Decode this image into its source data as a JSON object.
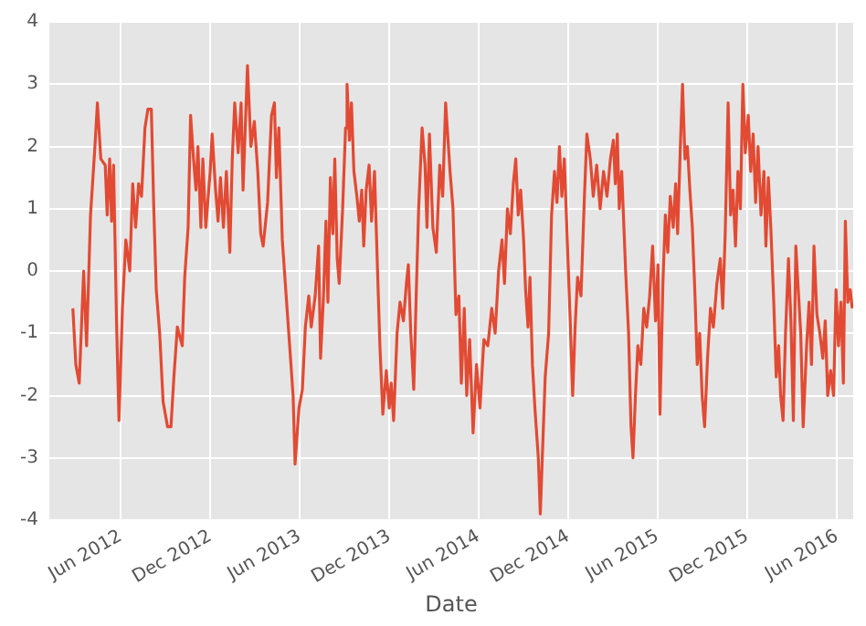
{
  "chart_data": {
    "type": "line",
    "xlabel": "Date",
    "xlim": [
      "2012-01-08",
      "2016-07-04"
    ],
    "xticks": [
      {
        "value": "2012-06-01",
        "label": "Jun 2012"
      },
      {
        "value": "2012-12-01",
        "label": "Dec 2012"
      },
      {
        "value": "2013-06-01",
        "label": "Jun 2013"
      },
      {
        "value": "2013-12-01",
        "label": "Dec 2013"
      },
      {
        "value": "2014-06-01",
        "label": "Jun 2014"
      },
      {
        "value": "2014-12-01",
        "label": "Dec 2014"
      },
      {
        "value": "2015-06-01",
        "label": "Jun 2015"
      },
      {
        "value": "2015-12-01",
        "label": "Dec 2015"
      },
      {
        "value": "2016-06-01",
        "label": "Jun 2016"
      }
    ],
    "ylim": [
      -4,
      4
    ],
    "yticks": [
      -4,
      -3,
      -2,
      -1,
      0,
      1,
      2,
      3,
      4
    ],
    "grid": true,
    "series": [
      {
        "color": "#e24a33",
        "x": [
          "2012-02-25",
          "2012-03-02",
          "2012-03-09",
          "2012-03-18",
          "2012-03-24",
          "2012-04-01",
          "2012-04-10",
          "2012-04-15",
          "2012-04-22",
          "2012-05-01",
          "2012-05-05",
          "2012-05-10",
          "2012-05-14",
          "2012-05-18",
          "2012-05-24",
          "2012-05-29",
          "2012-06-05",
          "2012-06-12",
          "2012-06-20",
          "2012-06-26",
          "2012-07-02",
          "2012-07-08",
          "2012-07-14",
          "2012-07-21",
          "2012-07-27",
          "2012-08-03",
          "2012-08-08",
          "2012-08-13",
          "2012-08-20",
          "2012-08-27",
          "2012-09-05",
          "2012-09-12",
          "2012-09-18",
          "2012-09-25",
          "2012-10-05",
          "2012-10-10",
          "2012-10-17",
          "2012-10-22",
          "2012-10-28",
          "2012-11-02",
          "2012-11-06",
          "2012-11-12",
          "2012-11-16",
          "2012-11-22",
          "2012-12-01",
          "2012-12-05",
          "2012-12-12",
          "2012-12-17",
          "2012-12-22",
          "2012-12-28",
          "2013-01-03",
          "2013-01-10",
          "2013-01-15",
          "2013-01-20",
          "2013-01-27",
          "2013-02-02",
          "2013-02-06",
          "2013-02-10",
          "2013-02-15",
          "2013-02-22",
          "2013-03-01",
          "2013-03-08",
          "2013-03-14",
          "2013-03-19",
          "2013-03-28",
          "2013-04-05",
          "2013-04-11",
          "2013-04-15",
          "2013-04-20",
          "2013-04-27",
          "2013-05-04",
          "2013-05-12",
          "2013-05-19",
          "2013-05-23",
          "2013-05-31",
          "2013-06-07",
          "2013-06-13",
          "2013-06-20",
          "2013-06-25",
          "2013-07-03",
          "2013-07-10",
          "2013-07-14",
          "2013-07-20",
          "2013-07-25",
          "2013-07-29",
          "2013-08-03",
          "2013-08-08",
          "2013-08-12",
          "2013-08-17",
          "2013-08-21",
          "2013-08-28",
          "2013-09-03",
          "2013-09-06",
          "2013-09-11",
          "2013-09-15",
          "2013-09-20",
          "2013-09-26",
          "2013-10-01",
          "2013-10-06",
          "2013-10-10",
          "2013-10-15",
          "2013-10-21",
          "2013-10-26",
          "2013-11-01",
          "2013-11-06",
          "2013-11-12",
          "2013-11-18",
          "2013-11-25",
          "2013-12-01",
          "2013-12-05",
          "2013-12-10",
          "2013-12-17",
          "2013-12-23",
          "2013-12-30",
          "2014-01-05",
          "2014-01-09",
          "2014-01-14",
          "2014-01-20",
          "2014-01-25",
          "2014-01-30",
          "2014-02-06",
          "2014-02-12",
          "2014-02-16",
          "2014-02-21",
          "2014-02-28",
          "2014-03-07",
          "2014-03-14",
          "2014-03-20",
          "2014-03-26",
          "2014-04-04",
          "2014-04-10",
          "2014-04-16",
          "2014-04-22",
          "2014-04-27",
          "2014-05-03",
          "2014-05-08",
          "2014-05-14",
          "2014-05-21",
          "2014-05-28",
          "2014-06-04",
          "2014-06-12",
          "2014-06-20",
          "2014-06-28",
          "2014-07-05",
          "2014-07-12",
          "2014-07-19",
          "2014-07-24",
          "2014-07-30",
          "2014-08-05",
          "2014-08-11",
          "2014-08-16",
          "2014-08-21",
          "2014-08-26",
          "2014-09-01",
          "2014-09-05",
          "2014-09-10",
          "2014-09-14",
          "2014-09-19",
          "2014-09-24",
          "2014-10-01",
          "2014-10-05",
          "2014-10-10",
          "2014-10-15",
          "2014-10-22",
          "2014-10-28",
          "2014-11-03",
          "2014-11-08",
          "2014-11-13",
          "2014-11-18",
          "2014-11-23",
          "2014-11-29",
          "2014-12-05",
          "2014-12-10",
          "2014-12-15",
          "2014-12-20",
          "2014-12-27",
          "2015-01-03",
          "2015-01-08",
          "2015-01-15",
          "2015-01-21",
          "2015-01-28",
          "2015-02-04",
          "2015-02-11",
          "2015-02-18",
          "2015-02-25",
          "2015-03-03",
          "2015-03-07",
          "2015-03-11",
          "2015-03-15",
          "2015-03-20",
          "2015-03-28",
          "2015-04-03",
          "2015-04-08",
          "2015-04-12",
          "2015-04-17",
          "2015-04-22",
          "2015-04-28",
          "2015-05-04",
          "2015-05-10",
          "2015-05-16",
          "2015-05-22",
          "2015-05-28",
          "2015-06-02",
          "2015-06-06",
          "2015-06-12",
          "2015-06-17",
          "2015-06-22",
          "2015-06-27",
          "2015-07-03",
          "2015-07-08",
          "2015-07-12",
          "2015-07-18",
          "2015-07-22",
          "2015-07-27",
          "2015-08-01",
          "2015-08-06",
          "2015-08-11",
          "2015-08-16",
          "2015-08-21",
          "2015-08-26",
          "2015-08-31",
          "2015-09-05",
          "2015-09-11",
          "2015-09-17",
          "2015-09-23",
          "2015-09-30",
          "2015-10-07",
          "2015-10-12",
          "2015-10-17",
          "2015-10-23",
          "2015-10-28",
          "2015-11-02",
          "2015-11-07",
          "2015-11-12",
          "2015-11-17",
          "2015-11-22",
          "2015-11-27",
          "2015-12-03",
          "2015-12-08",
          "2015-12-13",
          "2015-12-18",
          "2015-12-23",
          "2015-12-29",
          "2016-01-04",
          "2016-01-08",
          "2016-01-13",
          "2016-01-18",
          "2016-01-24",
          "2016-01-29",
          "2016-02-03",
          "2016-02-07",
          "2016-02-12",
          "2016-02-17",
          "2016-02-23",
          "2016-02-28",
          "2016-03-04",
          "2016-03-09",
          "2016-03-14",
          "2016-03-19",
          "2016-03-24",
          "2016-03-31",
          "2016-04-05",
          "2016-04-10",
          "2016-04-15",
          "2016-04-21",
          "2016-04-27",
          "2016-05-03",
          "2016-05-08",
          "2016-05-13",
          "2016-05-19",
          "2016-05-25",
          "2016-05-30",
          "2016-06-04",
          "2016-06-09",
          "2016-06-14",
          "2016-06-18",
          "2016-06-23",
          "2016-06-28",
          "2016-07-02"
        ],
        "values": [
          -0.6,
          -1.5,
          -1.8,
          0.0,
          -1.2,
          0.9,
          2.0,
          2.7,
          1.8,
          1.7,
          0.9,
          1.8,
          0.8,
          1.7,
          -0.8,
          -2.4,
          -0.6,
          0.5,
          0.0,
          1.4,
          0.7,
          1.4,
          1.2,
          2.3,
          2.6,
          2.6,
          1.0,
          -0.3,
          -1.0,
          -2.1,
          -2.5,
          -2.5,
          -1.7,
          -0.9,
          -1.2,
          -0.1,
          0.7,
          2.5,
          1.8,
          1.3,
          2.0,
          0.7,
          1.8,
          0.7,
          1.6,
          2.2,
          1.3,
          0.8,
          1.5,
          0.7,
          1.6,
          0.3,
          1.8,
          2.7,
          1.9,
          2.7,
          1.3,
          2.2,
          3.3,
          2.0,
          2.4,
          1.6,
          0.6,
          0.4,
          1.1,
          2.5,
          2.7,
          1.5,
          2.3,
          0.5,
          -0.3,
          -1.2,
          -2.0,
          -3.1,
          -2.2,
          -1.9,
          -0.9,
          -0.4,
          -0.9,
          -0.4,
          0.4,
          -1.4,
          -0.4,
          0.8,
          -0.5,
          1.5,
          0.6,
          1.8,
          0.2,
          -0.2,
          1.0,
          2.3,
          3.0,
          2.1,
          2.7,
          1.6,
          1.2,
          0.8,
          1.3,
          0.4,
          1.3,
          1.7,
          0.8,
          1.6,
          0.3,
          -1.2,
          -2.3,
          -1.6,
          -2.2,
          -1.8,
          -2.4,
          -1.0,
          -0.5,
          -0.8,
          -0.2,
          0.1,
          -1.0,
          -1.9,
          -0.4,
          1.0,
          2.3,
          1.7,
          0.7,
          2.2,
          0.7,
          0.3,
          1.7,
          1.2,
          2.7,
          1.6,
          1.0,
          -0.7,
          -0.4,
          -1.8,
          -0.6,
          -2.0,
          -1.1,
          -2.6,
          -1.5,
          -2.2,
          -1.1,
          -1.2,
          -0.6,
          -1.0,
          0.0,
          0.5,
          -0.2,
          1.0,
          0.6,
          1.4,
          1.8,
          0.9,
          1.3,
          0.5,
          -0.3,
          -0.9,
          -0.1,
          -1.5,
          -2.2,
          -3.0,
          -3.9,
          -2.8,
          -1.7,
          -1.0,
          0.9,
          1.6,
          1.1,
          2.0,
          1.2,
          1.8,
          0.5,
          -0.8,
          -2.0,
          -0.9,
          -0.1,
          -0.4,
          1.2,
          2.2,
          1.8,
          1.2,
          1.7,
          1.0,
          1.6,
          1.2,
          1.8,
          2.1,
          1.4,
          2.2,
          1.0,
          1.6,
          0.0,
          -1.0,
          -2.5,
          -3.0,
          -2.0,
          -1.2,
          -1.5,
          -0.6,
          -0.9,
          -0.4,
          0.4,
          -0.8,
          0.1,
          -2.3,
          -0.2,
          0.9,
          0.3,
          1.2,
          0.7,
          1.4,
          0.6,
          2.1,
          3.0,
          1.8,
          2.0,
          1.3,
          0.7,
          -0.3,
          -1.5,
          -1.0,
          -2.0,
          -2.5,
          -1.4,
          -0.6,
          -0.9,
          -0.2,
          0.2,
          -0.6,
          0.6,
          2.7,
          0.9,
          1.3,
          0.4,
          1.6,
          1.0,
          3.0,
          1.9,
          2.5,
          1.6,
          2.2,
          1.1,
          2.0,
          0.9,
          1.6,
          0.4,
          1.5,
          0.7,
          -0.5,
          -1.7,
          -1.2,
          -2.0,
          -2.4,
          -1.0,
          0.2,
          -0.8,
          -2.4,
          0.4,
          -0.3,
          -1.0,
          -2.5,
          -1.2,
          -0.5,
          -1.5,
          0.4,
          -0.7,
          -1.0,
          -1.4,
          -0.8,
          -2.0,
          -1.6,
          -2.0,
          -0.3,
          -1.2,
          -0.5,
          -1.8,
          0.8,
          -0.5,
          -0.3,
          -0.6
        ]
      }
    ]
  }
}
